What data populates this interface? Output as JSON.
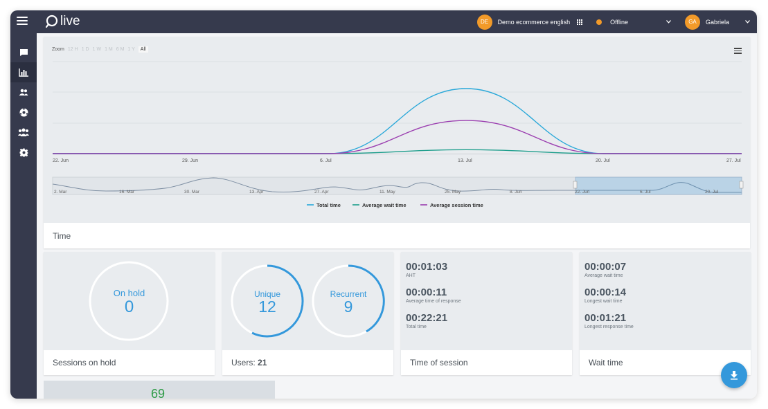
{
  "app": {
    "logo_text": "live"
  },
  "topbar": {
    "store_avatar": "DE",
    "store_name": "Demo ecommerce english",
    "status": "Offline",
    "status_color": "#f29a29",
    "user_avatar": "GA",
    "user_name": "Gabriela"
  },
  "sidebar": {
    "items": [
      {
        "icon": "chat-icon",
        "active": false
      },
      {
        "icon": "bar-chart-icon",
        "active": true
      },
      {
        "icon": "users-icon",
        "active": false
      },
      {
        "icon": "soccer-ball-icon",
        "active": false
      },
      {
        "icon": "group-icon",
        "active": false
      },
      {
        "icon": "gear-icon",
        "active": false
      }
    ]
  },
  "time_chart": {
    "zoom_label": "Zoom",
    "zoom_options": [
      "12 H",
      "1 D",
      "1 W",
      "1 M",
      "6 M",
      "1 Y",
      "All"
    ],
    "zoom_selected": "All",
    "footer_title": "Time",
    "navigator_ticks": [
      "2. Mar",
      "16. Mar",
      "30. Mar",
      "13. Apr",
      "27. Apr",
      "11. May",
      "25. May",
      "8. Jun",
      "22. Jun",
      "6. Jul",
      "20. Jul"
    ]
  },
  "chart_data": {
    "type": "line",
    "title": "",
    "xlabel": "",
    "ylabel": "",
    "x": [
      "22. Jun",
      "29. Jun",
      "6. Jul",
      "13. Jul",
      "20. Jul",
      "27. Jul"
    ],
    "series": [
      {
        "name": "Total time",
        "color": "#29a8d9",
        "values": [
          0,
          0,
          0,
          1,
          0,
          0
        ]
      },
      {
        "name": "Average wait time",
        "color": "#1e9e8c",
        "values": [
          0,
          0,
          0,
          0.06,
          0,
          0
        ]
      },
      {
        "name": "Average session time",
        "color": "#9b3fb0",
        "values": [
          0,
          0,
          0,
          0.51,
          0,
          0
        ]
      }
    ],
    "legend_position": "bottom",
    "grid": true
  },
  "cards": {
    "sessions_on_hold": {
      "label": "On hold",
      "value": "0",
      "title": "Sessions on hold"
    },
    "users": {
      "unique_label": "Unique",
      "unique_value": "12",
      "recurrent_label": "Recurrent",
      "recurrent_value": "9",
      "title_prefix": "Users: ",
      "total": "21"
    },
    "time_of_session": {
      "title": "Time of session",
      "metrics": [
        {
          "value": "00:01:03",
          "label": "AHT"
        },
        {
          "value": "00:00:11",
          "label": "Average time of response"
        },
        {
          "value": "00:22:21",
          "label": "Total time"
        }
      ]
    },
    "wait_time": {
      "title": "Wait time",
      "metrics": [
        {
          "value": "00:00:07",
          "label": "Average wait time"
        },
        {
          "value": "00:00:14",
          "label": "Longest wait time"
        },
        {
          "value": "00:01:21",
          "label": "Longest response time"
        }
      ]
    },
    "partial_value": "69"
  }
}
